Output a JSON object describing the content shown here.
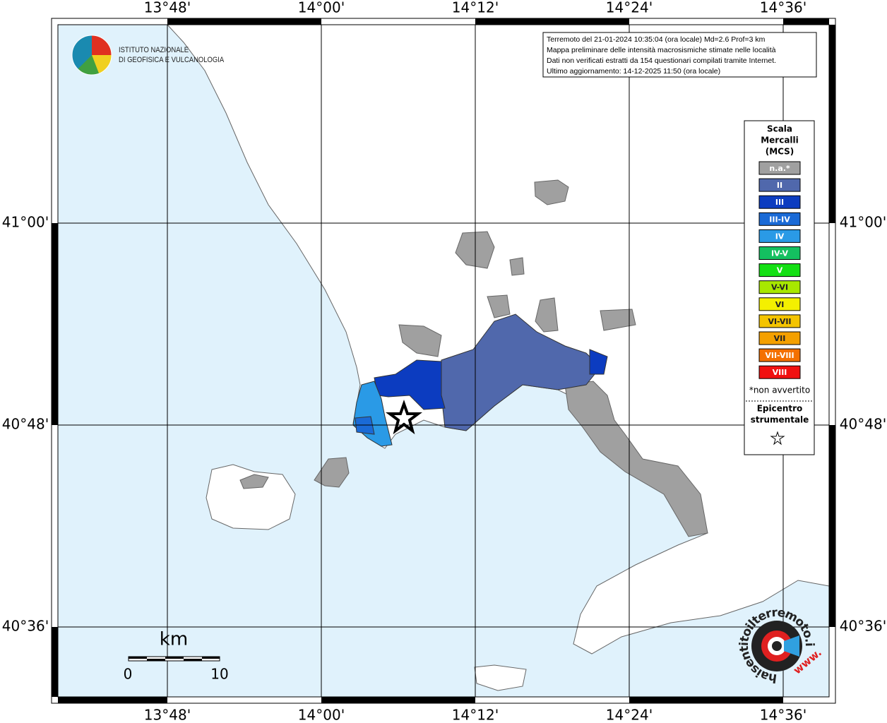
{
  "map": {
    "lon_labels": [
      "13°48'",
      "14°00'",
      "14°12'",
      "14°24'",
      "14°36'"
    ],
    "lat_labels": [
      "41°00'",
      "40°48'",
      "40°36'"
    ]
  },
  "logo": {
    "lines": [
      "ISTITUTO NAZIONALE",
      "DI GEOFISICA E VULCANOLOGIA"
    ]
  },
  "info": {
    "lines": [
      "Terremoto del 21-01-2024 10:35:04 (ora locale) Md=2.6 Prof=3 km",
      "Mappa preliminare delle intensità macrosismiche stimate nelle località",
      "Dati non verificati estratti da 154 questionari compilati tramite Internet.",
      "Ultimo aggiornamento: 14-12-2025 11:50 (ora locale)"
    ]
  },
  "legend": {
    "title": [
      "Scala",
      "Mercalli",
      "(MCS)"
    ],
    "items": [
      {
        "label": "n.a.*",
        "color": "#a0a0a0"
      },
      {
        "label": "II",
        "color": "#5068ac"
      },
      {
        "label": "III",
        "color": "#0c3cc0"
      },
      {
        "label": "III-IV",
        "color": "#1a6ad6"
      },
      {
        "label": "IV",
        "color": "#2a9ae6"
      },
      {
        "label": "IV-V",
        "color": "#14c060"
      },
      {
        "label": "V",
        "color": "#14e014"
      },
      {
        "label": "V-VI",
        "color": "#a8e800"
      },
      {
        "label": "VI",
        "color": "#f4f000"
      },
      {
        "label": "VI-VII",
        "color": "#f4c400"
      },
      {
        "label": "VII",
        "color": "#f4a000"
      },
      {
        "label": "VII-VIII",
        "color": "#f47000"
      },
      {
        "label": "VIII",
        "color": "#f01010"
      }
    ],
    "note": "*non avvertito",
    "epicenter": [
      "Epicentro",
      "strumentale"
    ]
  },
  "scale_bar": {
    "unit": "km",
    "labels": [
      "0",
      "10"
    ]
  },
  "watermark": {
    "site": "haisentitoilterremoto.it",
    "www": "www."
  }
}
